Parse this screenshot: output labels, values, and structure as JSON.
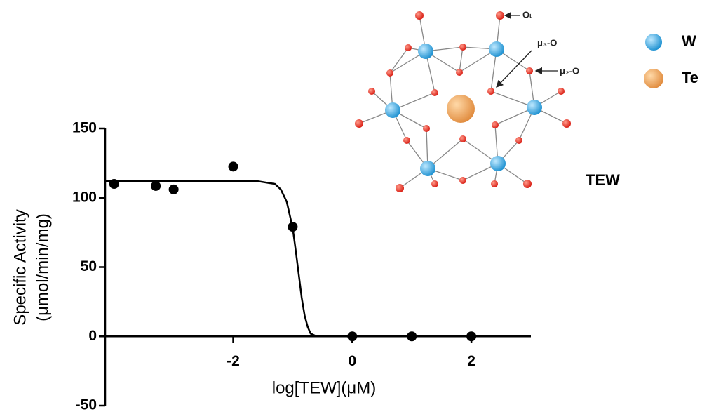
{
  "chart_data": {
    "type": "scatter",
    "xlabel": "log[TEW](μM)",
    "ylabel": [
      "Specific Activity",
      "(μmol/min/mg)"
    ],
    "xlim": [
      -4.15,
      3
    ],
    "ylim": [
      -50,
      150
    ],
    "xticks": [
      -2,
      0,
      2
    ],
    "yticks": [
      -50,
      0,
      50,
      100,
      150
    ],
    "grid": false,
    "points": {
      "color": "#000000",
      "x": [
        -4,
        -3.3,
        -3,
        -2,
        -1,
        0,
        1,
        2
      ],
      "y": [
        110,
        108.5,
        106,
        122.5,
        79,
        0,
        0,
        0
      ]
    },
    "fit": {
      "color": "#000000",
      "x": [
        -4.15,
        -1.6,
        -1.3,
        -1.2,
        -1.1,
        -1.0,
        -0.95,
        -0.9,
        -0.85,
        -0.8,
        -0.75,
        -0.7,
        -0.6,
        3
      ],
      "y": [
        112,
        112,
        110,
        106,
        97,
        78,
        62,
        45,
        28,
        15,
        7,
        2,
        0,
        0
      ]
    },
    "structure": {
      "name": "TEW",
      "legend": [
        {
          "name": "W",
          "color": "#1a8fd0"
        },
        {
          "name": "Te",
          "color": "#e08a3c"
        }
      ],
      "annotations": [
        "Oₜ",
        "μ₃-O",
        "μ₂-O"
      ]
    }
  }
}
